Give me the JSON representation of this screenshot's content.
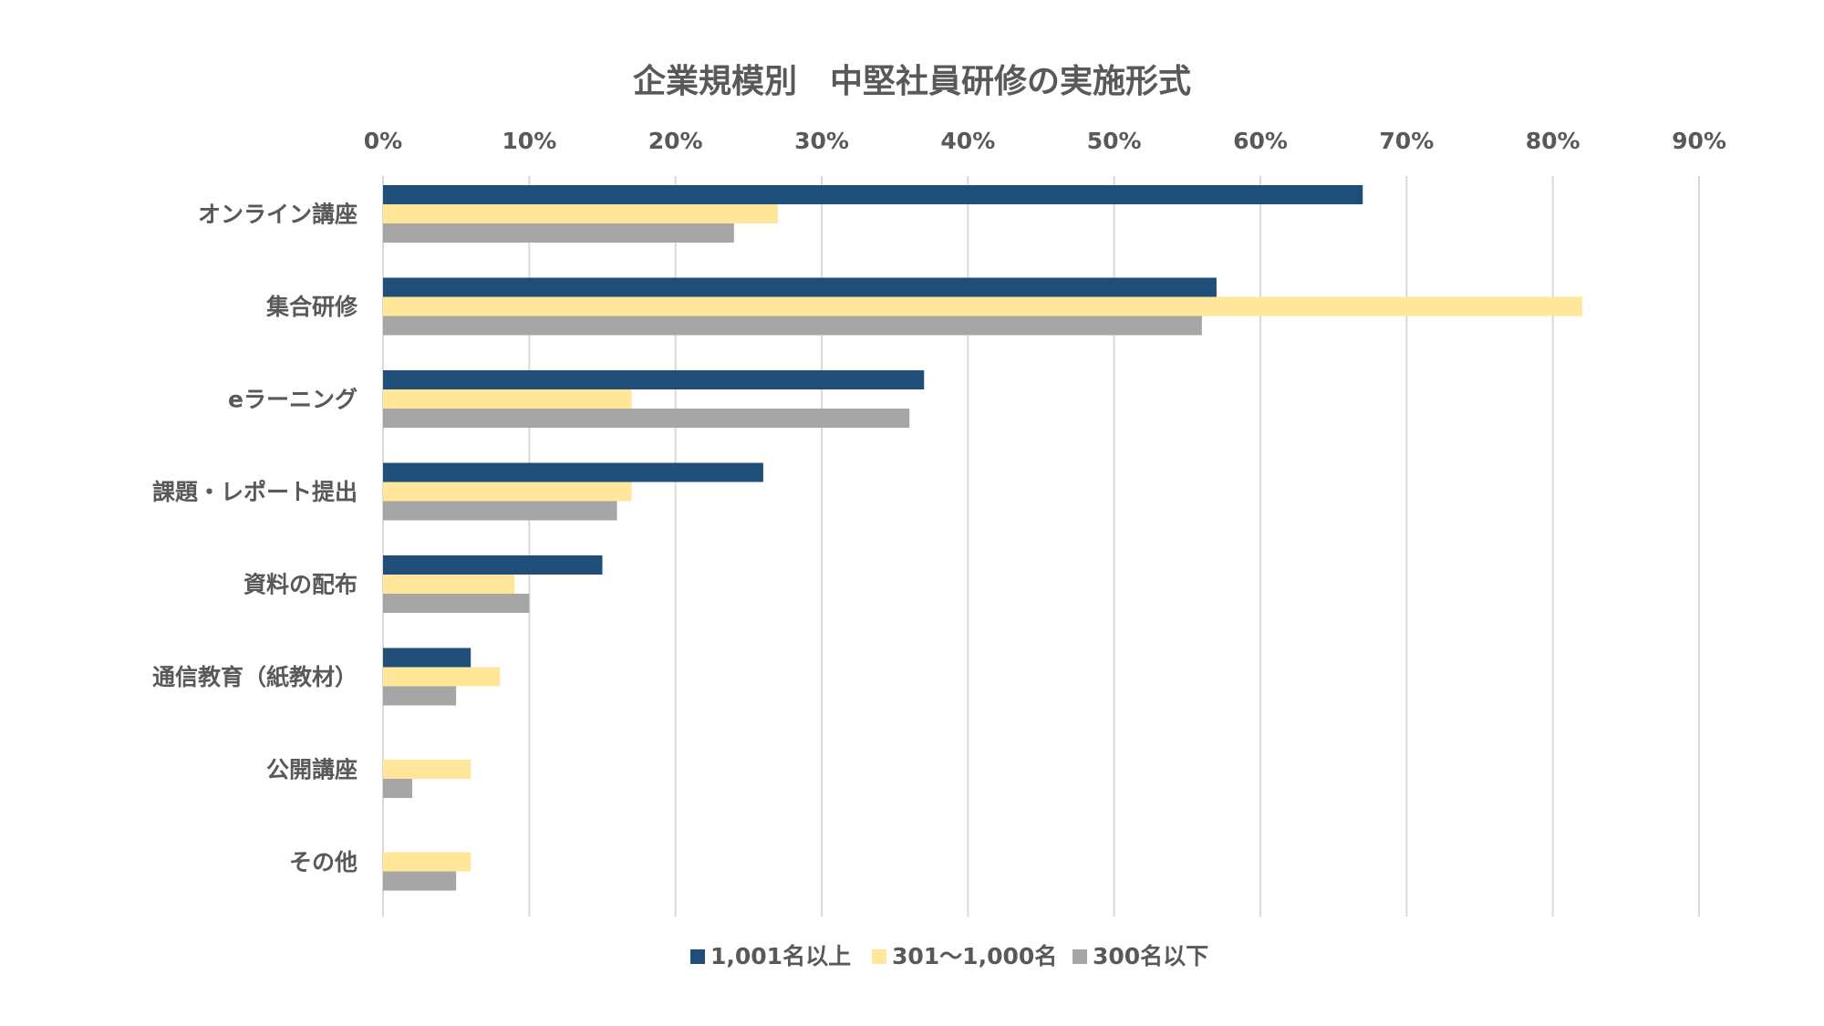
{
  "chart_data": {
    "type": "bar",
    "orientation": "horizontal",
    "title": "企業規模別　中堅社員研修の実施形式",
    "categories": [
      "オンライン講座",
      "集合研修",
      "eラーニング",
      "課題・レポート提出",
      "資料の配布",
      "通信教育（紙教材）",
      "公開講座",
      "その他"
    ],
    "series": [
      {
        "name": "1,001名以上",
        "color": "#1f4e79",
        "values": [
          67,
          57,
          37,
          26,
          15,
          6,
          0,
          0
        ]
      },
      {
        "name": "301〜1,000名",
        "color": "#ffe699",
        "values": [
          27,
          82,
          17,
          17,
          9,
          8,
          6,
          6
        ]
      },
      {
        "name": "300名以下",
        "color": "#a6a6a6",
        "values": [
          24,
          56,
          36,
          16,
          10,
          5,
          2,
          5
        ]
      }
    ],
    "xlim": [
      0,
      90
    ],
    "x_ticks": [
      "0%",
      "10%",
      "20%",
      "30%",
      "40%",
      "50%",
      "60%",
      "70%",
      "80%",
      "90%"
    ],
    "x_axis_position": "top",
    "grid": true,
    "legend": "bottom"
  }
}
